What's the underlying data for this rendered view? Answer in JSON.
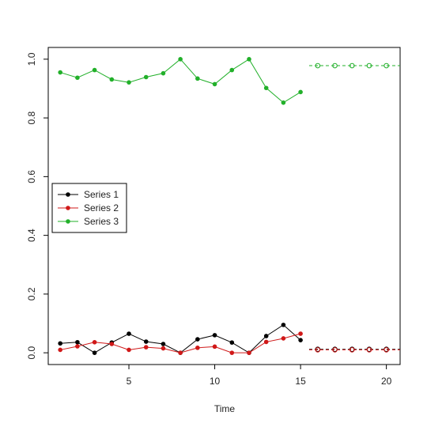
{
  "chart_data": {
    "type": "line",
    "title": "",
    "xlabel": "Time",
    "ylabel": "",
    "xlim": [
      0.3,
      20.8
    ],
    "ylim": [
      -0.04,
      1.04
    ],
    "x_ticks": [
      5,
      10,
      15,
      20
    ],
    "y_ticks": [
      0.0,
      0.2,
      0.4,
      0.6,
      0.8,
      1.0
    ],
    "x_tick_labels": [
      "5",
      "10",
      "15",
      "20"
    ],
    "y_tick_labels": [
      "0.0",
      "0.2",
      "0.4",
      "0.6",
      "0.8",
      "1.0"
    ],
    "grid": false,
    "legend_position": "left-middle",
    "series": [
      {
        "name": "Series 1",
        "color": "#000000",
        "x": [
          1,
          2,
          3,
          4,
          5,
          6,
          7,
          8,
          9,
          10,
          11,
          12,
          13,
          14,
          15
        ],
        "values": [
          0.032,
          0.036,
          0.0,
          0.035,
          0.065,
          0.038,
          0.03,
          0.0,
          0.046,
          0.06,
          0.035,
          0.0,
          0.057,
          0.095,
          0.043
        ],
        "forecast_x": [
          16,
          17,
          18,
          19,
          20
        ],
        "forecast_values": [
          0.012,
          0.012,
          0.012,
          0.012,
          0.012
        ]
      },
      {
        "name": "Series 2",
        "color": "#d01818",
        "x": [
          1,
          2,
          3,
          4,
          5,
          6,
          7,
          8,
          9,
          10,
          11,
          12,
          13,
          14,
          15
        ],
        "values": [
          0.01,
          0.022,
          0.036,
          0.03,
          0.01,
          0.019,
          0.015,
          0.0,
          0.017,
          0.021,
          0.0,
          0.0,
          0.037,
          0.049,
          0.065
        ],
        "forecast_x": [
          16,
          17,
          18,
          19,
          20
        ],
        "forecast_values": [
          0.01,
          0.01,
          0.01,
          0.01,
          0.01
        ]
      },
      {
        "name": "Series 3",
        "color": "#22b02a",
        "x": [
          1,
          2,
          3,
          4,
          5,
          6,
          7,
          8,
          9,
          10,
          11,
          12,
          13,
          14,
          15
        ],
        "values": [
          0.955,
          0.937,
          0.963,
          0.931,
          0.921,
          0.939,
          0.952,
          1.0,
          0.934,
          0.915,
          0.963,
          1.0,
          0.902,
          0.852,
          0.888
        ],
        "forecast_x": [
          16,
          17,
          18,
          19,
          20
        ],
        "forecast_values": [
          0.978,
          0.978,
          0.978,
          0.978,
          0.978
        ]
      }
    ]
  }
}
